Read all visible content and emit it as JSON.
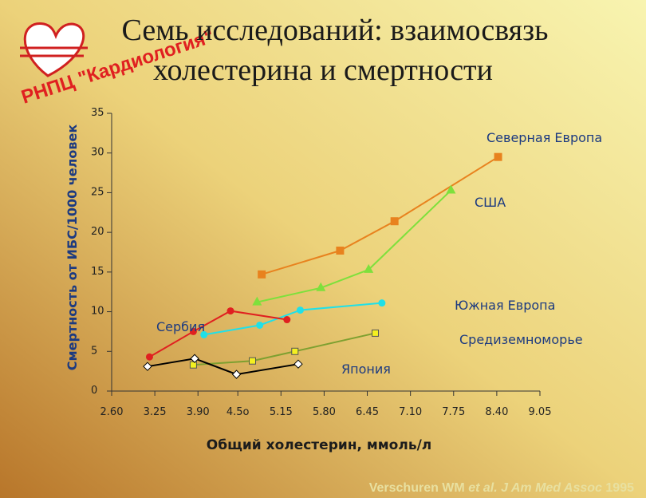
{
  "chart_data": {
    "type": "line",
    "title": [
      "Семь исследований: взаимосвязь",
      "холестерина и смертности"
    ],
    "logo": "РНПЦ \"Кардиология\"",
    "ylabel": "Смертность от ИБС/1000 человек",
    "xlabel": "Общий холестерин, ммоль/л",
    "source": {
      "author": "Verschuren WM",
      "italic": "et al. J Am Med Assoc",
      "year": "1995"
    },
    "xlim": [
      2.6,
      9.05
    ],
    "xticks": [
      {
        "value": 2.6,
        "label": "2.60"
      },
      {
        "value": 3.25,
        "label": "3.25"
      },
      {
        "value": 3.9,
        "label": "3.90"
      },
      {
        "value": 4.5,
        "label": "4.5o"
      },
      {
        "value": 5.15,
        "label": "5.15"
      },
      {
        "value": 5.8,
        "label": "5.80"
      },
      {
        "value": 6.45,
        "label": "6.45"
      },
      {
        "value": 7.1,
        "label": "7.10"
      },
      {
        "value": 7.75,
        "label": "7.75"
      },
      {
        "value": 8.4,
        "label": "8.40"
      },
      {
        "value": 9.05,
        "label": "9.05"
      }
    ],
    "ylim": [
      0,
      35
    ],
    "yticks": [
      0,
      5,
      10,
      15,
      20,
      25,
      30,
      35
    ],
    "series": [
      {
        "name": "Северная Европа",
        "color": "#e8821e",
        "marker": "square",
        "x": [
          4.86,
          6.04,
          6.86,
          8.42
        ],
        "values": [
          14.7,
          17.7,
          21.4,
          29.5
        ]
      },
      {
        "name": "США",
        "color": "#7ee03c",
        "marker": "triangle",
        "x": [
          4.79,
          5.75,
          6.47,
          7.71
        ],
        "values": [
          11.2,
          13.0,
          15.3,
          25.3
        ]
      },
      {
        "name": "Южная Европа",
        "color": "#20e0e8",
        "marker": "circle",
        "x": [
          3.99,
          4.83,
          5.44,
          6.67
        ],
        "values": [
          7.1,
          8.3,
          10.2,
          11.1
        ]
      },
      {
        "name": "Сербия",
        "color": "#e02020",
        "marker": "circle",
        "x": [
          3.17,
          3.83,
          4.39,
          5.24
        ],
        "values": [
          4.3,
          7.5,
          10.1,
          9.0
        ]
      },
      {
        "name": "Средиземноморье",
        "color": "#7ea030",
        "marker": "ysquare",
        "x": [
          3.83,
          4.72,
          5.36,
          6.57
        ],
        "values": [
          3.3,
          3.8,
          5.0,
          7.3
        ]
      },
      {
        "name": "Япония",
        "color": "#000000",
        "marker": "diamond",
        "x": [
          3.14,
          3.85,
          4.48,
          5.41
        ],
        "values": [
          3.1,
          4.1,
          2.1,
          3.4
        ]
      }
    ]
  }
}
